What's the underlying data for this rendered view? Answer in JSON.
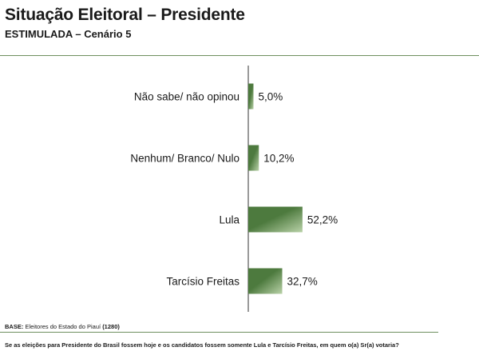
{
  "header": {
    "title": "Situação Eleitoral – Presidente",
    "subtitle": "ESTIMULADA – Cenário 5"
  },
  "footer": {
    "base_label": "BASE:",
    "base_text": "Eleitores do Estado do Piauí",
    "base_count": "(1280)",
    "question": "Se as eleições para Presidente do Brasil fossem hoje e os candidatos fossem somente Lula e Tarcísio Freitas, em quem o(a) Sr(a) votaria?"
  },
  "colors": {
    "bar_dark": "#4d7a3e",
    "bar_light": "#b9d2a8",
    "axis": "#333333",
    "rule": "#6e8f5f"
  },
  "chart_data": {
    "type": "bar",
    "orientation": "horizontal",
    "categories": [
      "Não sabe/ não opinou",
      "Nenhum/ Branco/ Nulo",
      "Lula",
      "Tarcísio Freitas"
    ],
    "values": [
      5.0,
      10.2,
      52.2,
      32.7
    ],
    "value_labels": [
      "5,0%",
      "10,2%",
      "52,2%",
      "32,7%"
    ],
    "title": "",
    "xlabel": "",
    "ylabel": "",
    "xlim": [
      0,
      100
    ],
    "grid": false,
    "legend": "none"
  }
}
